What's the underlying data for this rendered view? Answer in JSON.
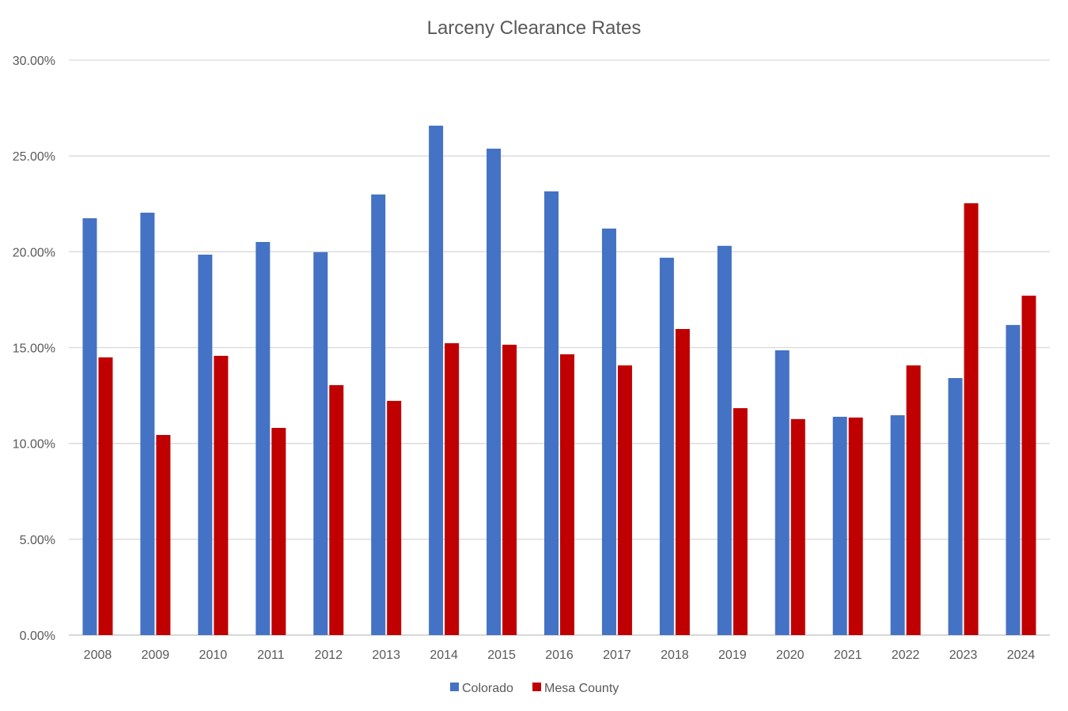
{
  "chart_data": {
    "type": "bar",
    "title": "Larceny Clearance Rates",
    "xlabel": "",
    "ylabel": "",
    "ylim": [
      0,
      30
    ],
    "yticks": [
      0,
      5,
      10,
      15,
      20,
      25,
      30
    ],
    "ytick_labels": [
      "0.00%",
      "5.00%",
      "10.00%",
      "15.00%",
      "20.00%",
      "25.00%",
      "30.00%"
    ],
    "grid": true,
    "legend_position": "bottom",
    "categories": [
      "2008",
      "2009",
      "2010",
      "2011",
      "2012",
      "2013",
      "2014",
      "2015",
      "2016",
      "2017",
      "2018",
      "2019",
      "2020",
      "2021",
      "2022",
      "2023",
      "2024"
    ],
    "series": [
      {
        "name": "Colorado",
        "color": "#4472C4",
        "values": [
          21.75,
          22.04,
          19.85,
          20.51,
          19.98,
          22.99,
          26.58,
          25.38,
          23.15,
          21.21,
          19.69,
          20.31,
          14.86,
          11.39,
          11.47,
          13.41,
          16.18
        ]
      },
      {
        "name": "Mesa County",
        "color": "#C00000",
        "values": [
          14.49,
          10.44,
          14.57,
          10.81,
          13.04,
          12.22,
          15.23,
          15.15,
          14.65,
          14.07,
          15.97,
          11.84,
          11.27,
          11.35,
          14.07,
          22.53,
          17.71
        ]
      }
    ]
  }
}
